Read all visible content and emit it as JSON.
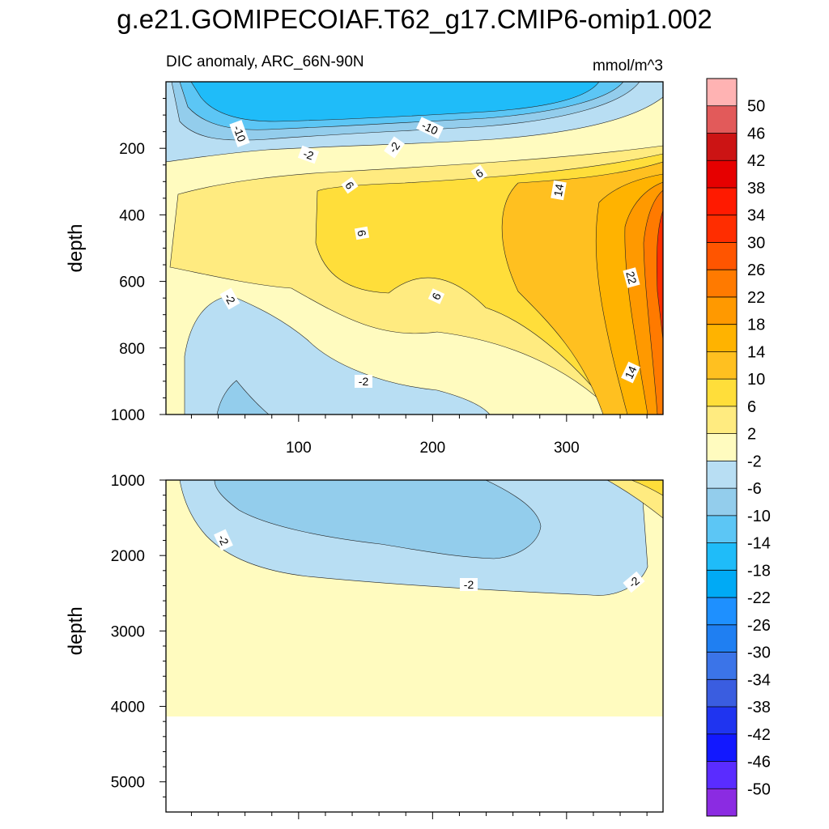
{
  "title": "g.e21.GOMIPECOIAF.T62_g17.CMIP6-omip1.002",
  "chart_data": {
    "type": "contour",
    "subtitle": "DIC anomaly, ARC_66N-90N",
    "units": "mmol/m^3",
    "xlim": [
      1,
      372
    ],
    "x_ticks": [
      100,
      200,
      300
    ],
    "panels": [
      {
        "name": "upper",
        "ylabel": "depth",
        "ylim": [
          0,
          1000
        ],
        "y_ticks": [
          200,
          400,
          600,
          800,
          1000
        ]
      },
      {
        "name": "lower",
        "ylabel": "depth",
        "ylim": [
          1000,
          5400
        ],
        "y_ticks": [
          1000,
          2000,
          3000,
          4000,
          5000
        ]
      }
    ],
    "levels": [
      -50,
      -46,
      -42,
      -38,
      -34,
      -30,
      -26,
      -22,
      -18,
      -14,
      -10,
      -6,
      -2,
      2,
      6,
      10,
      14,
      18,
      22,
      26,
      30,
      34,
      38,
      42,
      46,
      50
    ],
    "colorbar_labels": [
      "50",
      "46",
      "42",
      "38",
      "34",
      "30",
      "26",
      "22",
      "18",
      "14",
      "10",
      "6",
      "2",
      "-2",
      "-6",
      "-10",
      "-14",
      "-18",
      "-22",
      "-26",
      "-30",
      "-34",
      "-38",
      "-42",
      "-46",
      "-50"
    ],
    "colorbar_colors": [
      "#ffb3b3",
      "#e25a5a",
      "#cc1414",
      "#e60000",
      "#ff1a00",
      "#ff2d00",
      "#ff5500",
      "#ff7a00",
      "#ff9900",
      "#ffb300",
      "#ffc020",
      "#ffde3a",
      "#ffeb80",
      "#fffbbf",
      "#b8def3",
      "#93cdec",
      "#5cc6f5",
      "#1fbcf9",
      "#00aaf5",
      "#1e90ff",
      "#1f7ff2",
      "#3b74e8",
      "#3a5de0",
      "#1f34f0",
      "#1218ff",
      "#5a2cff",
      "#8b2be2"
    ],
    "contour_labels": [
      "-10",
      "-10",
      "-2",
      "-2",
      "-2",
      "6",
      "6",
      "6",
      "6",
      "14",
      "22",
      "14",
      "-2",
      "-2",
      "-2",
      "-2",
      "-2"
    ]
  }
}
